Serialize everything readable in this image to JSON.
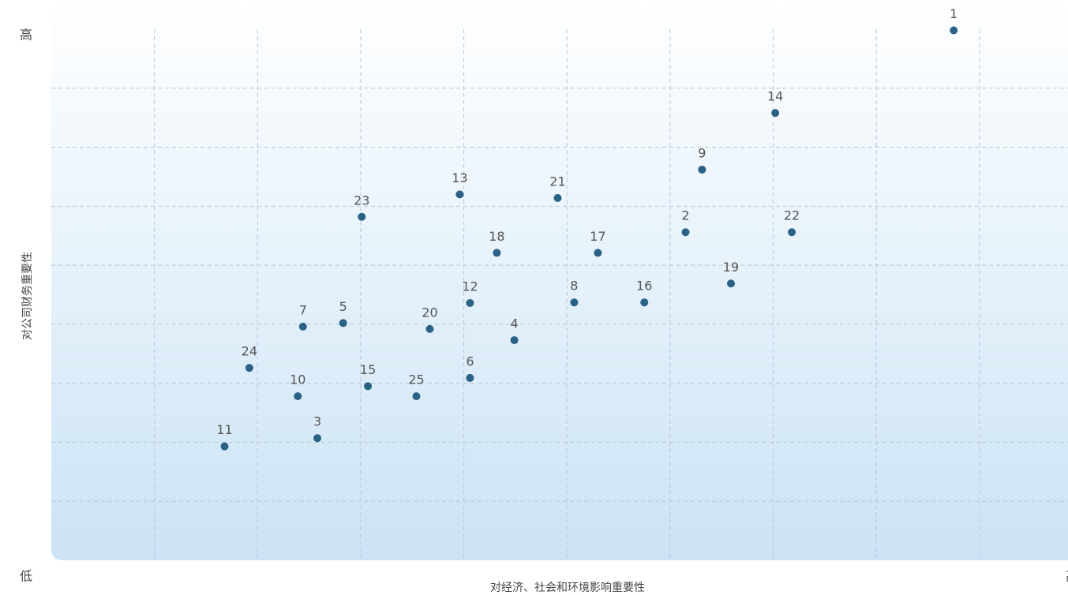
{
  "chart_data": {
    "type": "scatter",
    "x_axis_label": "对经济、社会和环境影响重要性",
    "y_axis_label": "对公司财务重要性",
    "x_end_labels": {
      "low": "低",
      "high": "高"
    },
    "y_end_labels": {
      "low": "低",
      "high": "高"
    },
    "xlim": [
      0,
      10
    ],
    "ylim": [
      0,
      9
    ],
    "xgrid": [
      1,
      2,
      3,
      4,
      5,
      6,
      7,
      8,
      9
    ],
    "ygrid": [
      1,
      2,
      3,
      4,
      5,
      6,
      7,
      8
    ],
    "grid": true,
    "series": [
      {
        "name": null,
        "color": "#2a6285",
        "labels": [
          "1",
          "14",
          "9",
          "13",
          "21",
          "23",
          "2",
          "22",
          "18",
          "17",
          "19",
          "12",
          "8",
          "16",
          "7",
          "5",
          "20",
          "4",
          "24",
          "10",
          "15",
          "25",
          "6",
          "3",
          "11"
        ],
        "x": [
          8.75,
          7.02,
          6.31,
          3.96,
          4.91,
          3.01,
          6.15,
          7.18,
          4.32,
          5.3,
          6.59,
          4.06,
          5.07,
          5.75,
          2.44,
          2.83,
          3.67,
          4.49,
          1.92,
          2.39,
          3.07,
          3.54,
          4.06,
          2.58,
          1.68
        ],
        "values": [
          8.98,
          7.58,
          6.62,
          6.2,
          6.14,
          5.82,
          5.56,
          5.56,
          5.21,
          5.21,
          4.69,
          4.36,
          4.37,
          4.37,
          3.96,
          4.02,
          3.92,
          3.73,
          3.26,
          2.78,
          2.95,
          2.78,
          3.09,
          2.07,
          1.93
        ]
      }
    ]
  }
}
